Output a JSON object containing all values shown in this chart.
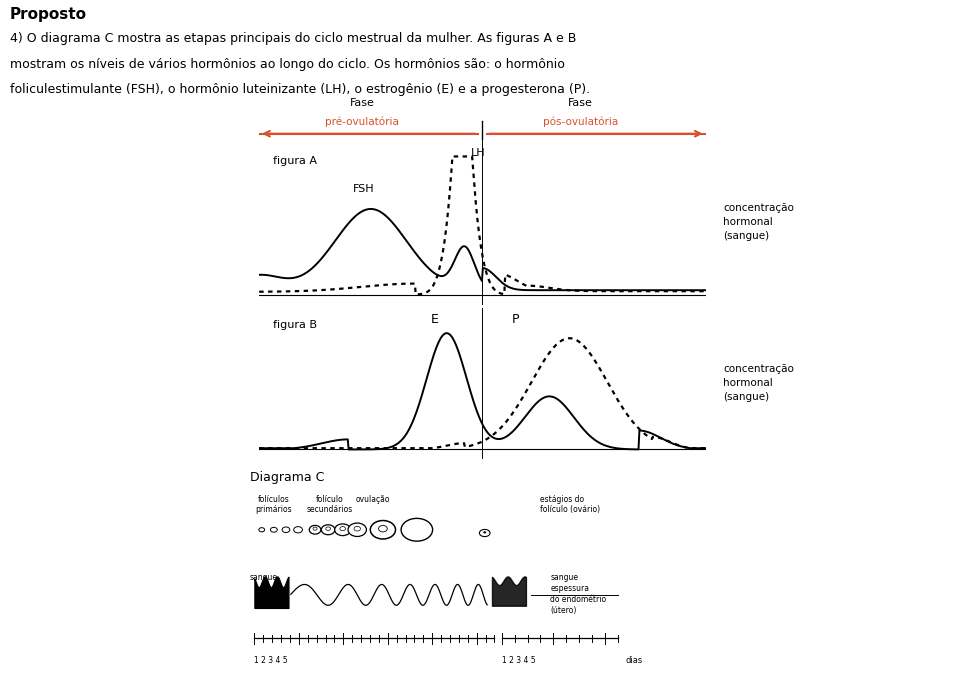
{
  "title_bold": "Proposto",
  "question_text": "4) O diagrama C mostra as etapas principais do ciclo mestrual da mulher. As figuras A e B\nmostram os níveis de vários hormônios ao longo do ciclo. Os hormônios são: o hormônio\nfoliculestimulante (FSH), o hormônio luteinizante (LH), o estrogênio (E) e a progesterona (P).",
  "conc_hormonal": "concentração\nhormonal\n(sangue)",
  "color_figA_bg": "#aadcf0",
  "color_figB_bg": "#eeeea0",
  "arrow_color": "#d9512c"
}
